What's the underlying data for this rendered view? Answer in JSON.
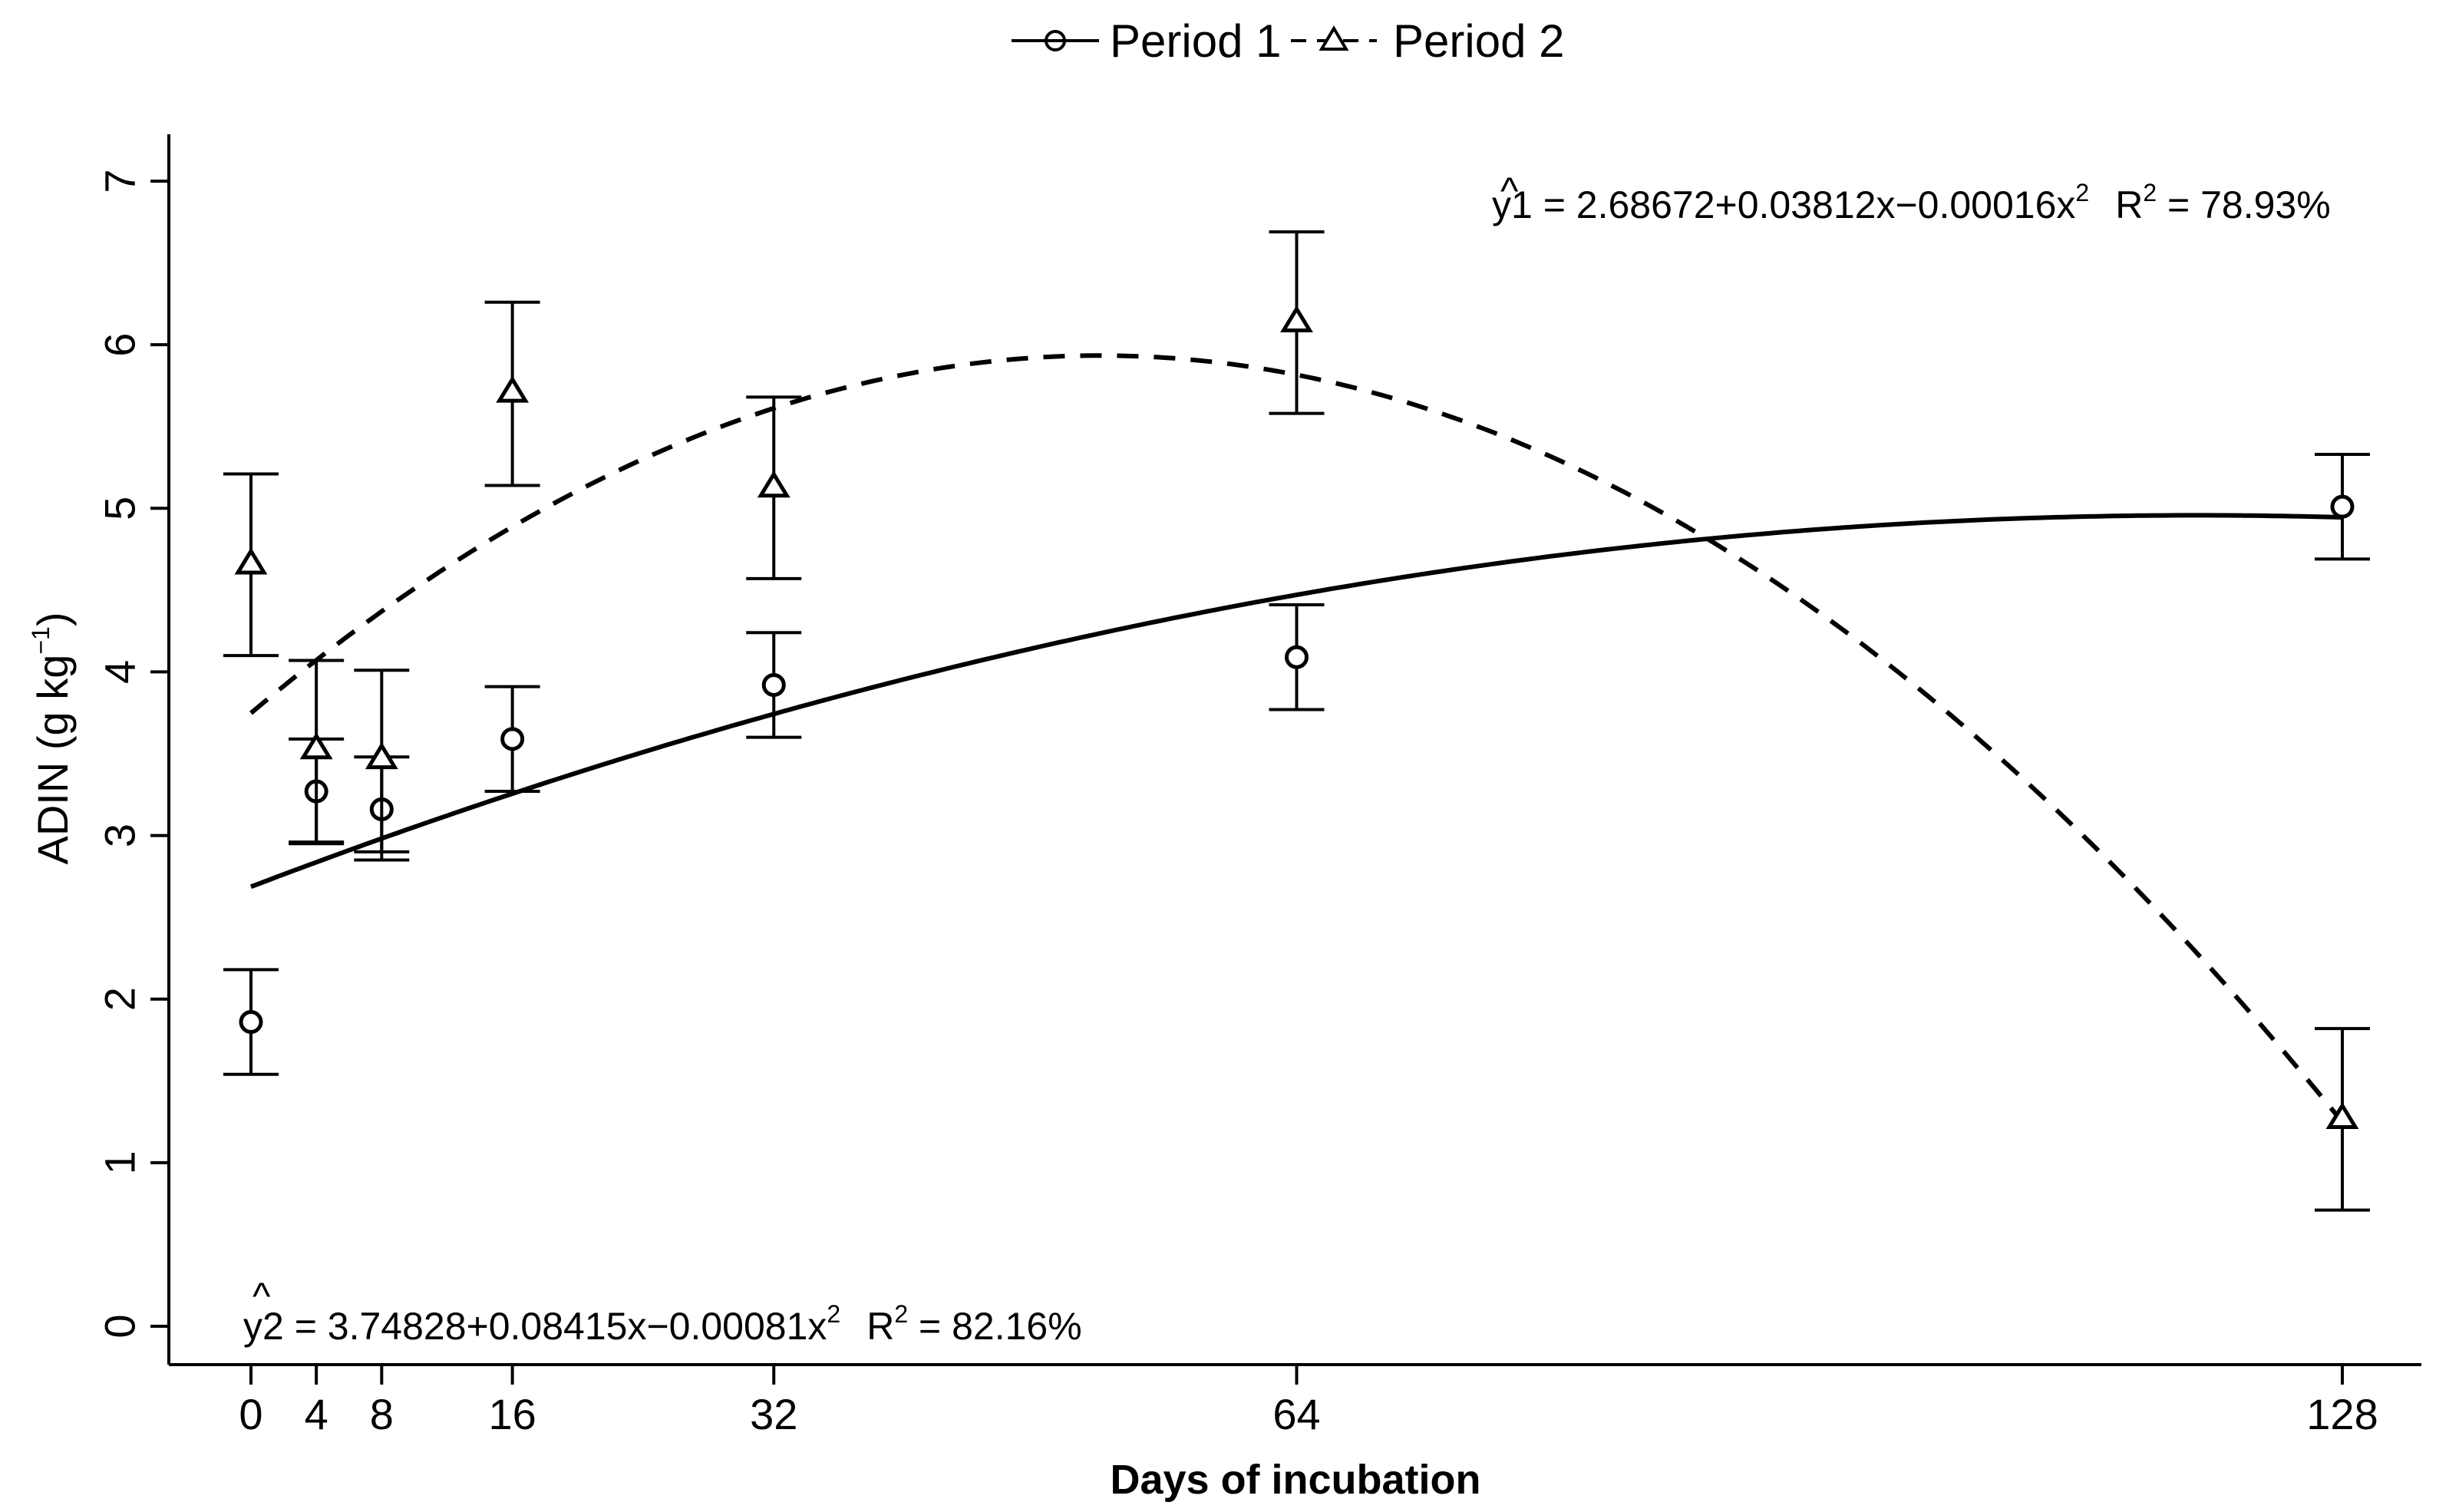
{
  "chart_data": {
    "type": "scatter",
    "title": "",
    "xlabel": "Days of incubation",
    "ylabel": {
      "main": "ADIN (g kg",
      "sup": "−1",
      "close": ")"
    },
    "xlim": [
      -4,
      132
    ],
    "ylim": [
      -0.3,
      7.3
    ],
    "x_ticks": [
      0,
      4,
      8,
      16,
      32,
      64,
      128
    ],
    "y_ticks": [
      0,
      1,
      2,
      3,
      4,
      5,
      6,
      7
    ],
    "legend": {
      "placement": "top-center",
      "items": [
        {
          "label": "Period 1",
          "line": "solid",
          "marker": "circle"
        },
        {
          "label": "Period 2",
          "line": "dashed",
          "marker": "triangle"
        }
      ]
    },
    "series": [
      {
        "name": "Period 1",
        "marker": "circle",
        "line": "solid",
        "x": [
          0,
          4,
          8,
          16,
          32,
          64,
          128
        ],
        "y": [
          1.86,
          3.27,
          3.16,
          3.59,
          3.92,
          4.09,
          5.01
        ],
        "err_low": [
          1.54,
          2.95,
          2.85,
          3.27,
          3.6,
          3.77,
          4.69
        ],
        "err_high": [
          2.18,
          3.59,
          3.48,
          3.91,
          4.24,
          4.41,
          5.33
        ],
        "fit": {
          "a": 2.68672,
          "b": 0.03812,
          "c": -0.00016,
          "x_range": [
            0,
            128
          ]
        }
      },
      {
        "name": "Period 2",
        "marker": "triangle",
        "line": "dashed",
        "x": [
          0,
          4,
          8,
          16,
          32,
          64,
          128
        ],
        "y": [
          4.66,
          3.53,
          3.47,
          5.71,
          5.13,
          6.14,
          1.27
        ],
        "err_low": [
          4.1,
          2.96,
          2.9,
          5.14,
          4.57,
          5.58,
          0.71
        ],
        "err_high": [
          5.21,
          4.07,
          4.01,
          6.26,
          5.68,
          6.69,
          1.82
        ],
        "fit": {
          "a": 3.74828,
          "b": 0.08415,
          "c": -0.00081,
          "x_range": [
            0,
            128
          ]
        }
      }
    ],
    "annotations": [
      {
        "id": "eq1",
        "placement": "top-right",
        "yhat": "y",
        "hat": "^",
        "index": "1",
        "body": " = 2.68672+0.03812x−0.00016x",
        "exp": "2",
        "r2_label": "R",
        "r2_exp": "2",
        "r2_value": " = 78.93%"
      },
      {
        "id": "eq2",
        "placement": "bottom-left",
        "yhat": "y",
        "hat": "^",
        "index": "2",
        "body": " = 3.74828+0.08415x−0.00081x",
        "exp": "2",
        "r2_label": "R",
        "r2_exp": "2",
        "r2_value": " = 82.16%"
      }
    ]
  }
}
